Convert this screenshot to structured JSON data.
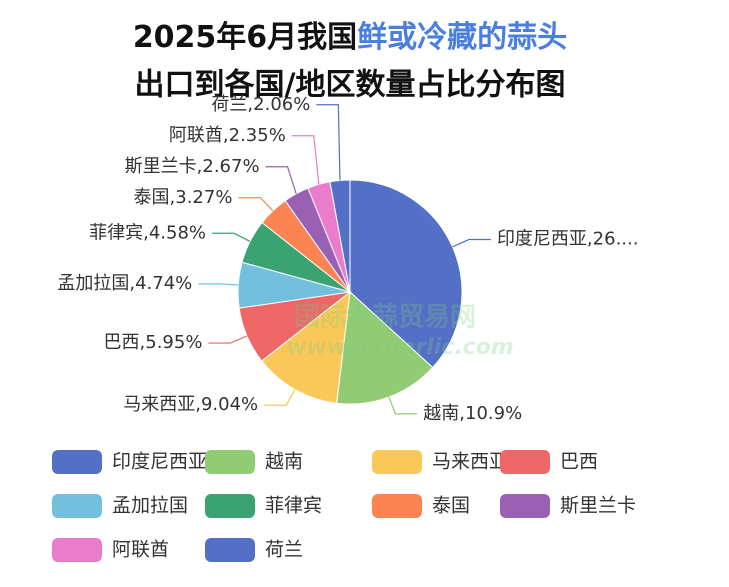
{
  "chart_data": {
    "type": "pie",
    "title": "2025年6月我国",
    "title_highlight": "鲜或冷藏的蒜头",
    "title_highlight_color": "#4a7fe0",
    "subtitle": "出口到各国/地区数量占比分布图",
    "watermark": [
      "国际大蒜贸易网",
      "www.51garlic.com"
    ],
    "categories": [
      "印度尼西亚",
      "越南",
      "马来西亚",
      "巴西",
      "孟加拉国",
      "菲律宾",
      "泰国",
      "斯里兰卡",
      "阿联酋",
      "荷兰"
    ],
    "values": [
      26.5,
      10.9,
      9.04,
      5.95,
      4.74,
      4.58,
      3.27,
      2.67,
      2.35,
      2.06
    ],
    "value_labels": [
      "印度尼西亚,26....",
      "越南,10.9%",
      "马来西亚,9.04%",
      "巴西,5.95%",
      "孟加拉国,4.74%",
      "菲律宾,4.58%",
      "泰国,3.27%",
      "斯里兰卡,2.67%",
      "阿联酋,2.35%",
      "荷兰,2.06%"
    ],
    "colors": [
      "#5470c6",
      "#91cc75",
      "#fac858",
      "#ee6666",
      "#73c0de",
      "#3ba272",
      "#fc8452",
      "#9a60b4",
      "#ea7ccc",
      "#5470c6"
    ],
    "legend": "bottom"
  }
}
